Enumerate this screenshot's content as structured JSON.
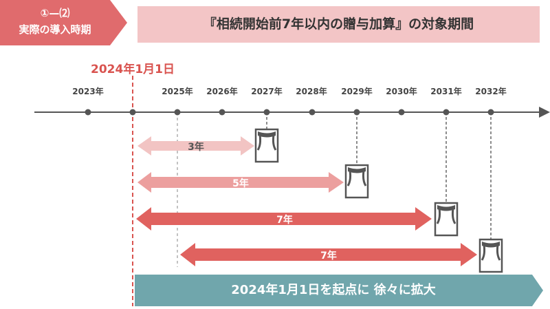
{
  "badge": {
    "line1": "①—⑵",
    "line2": "実際の導入時期"
  },
  "title": "『相続開始前7年以内の贈与加算』の対象期間",
  "start_date": "2024年1月1日",
  "timeline": {
    "years": [
      "2023年",
      "2025年",
      "2026年",
      "2027年",
      "2028年",
      "2029年",
      "2030年",
      "2031年",
      "2032年"
    ]
  },
  "periods": [
    {
      "label": "3年",
      "color": "#f2c4c3"
    },
    {
      "label": "5年",
      "color": "#ec9f9e"
    },
    {
      "label": "7年",
      "color": "#e0625f"
    },
    {
      "label": "7年",
      "color": "#e0625f"
    }
  ],
  "icon_names": [
    "gift-icon",
    "gift-icon",
    "gift-icon",
    "gift-icon"
  ],
  "bottom_banner": "2024年1月1日を起点に 徐々に拡大",
  "colors": {
    "accent": "#e06b6d",
    "banner": "#70a6ac",
    "axis": "#555555",
    "date_line": "#d9534f"
  }
}
